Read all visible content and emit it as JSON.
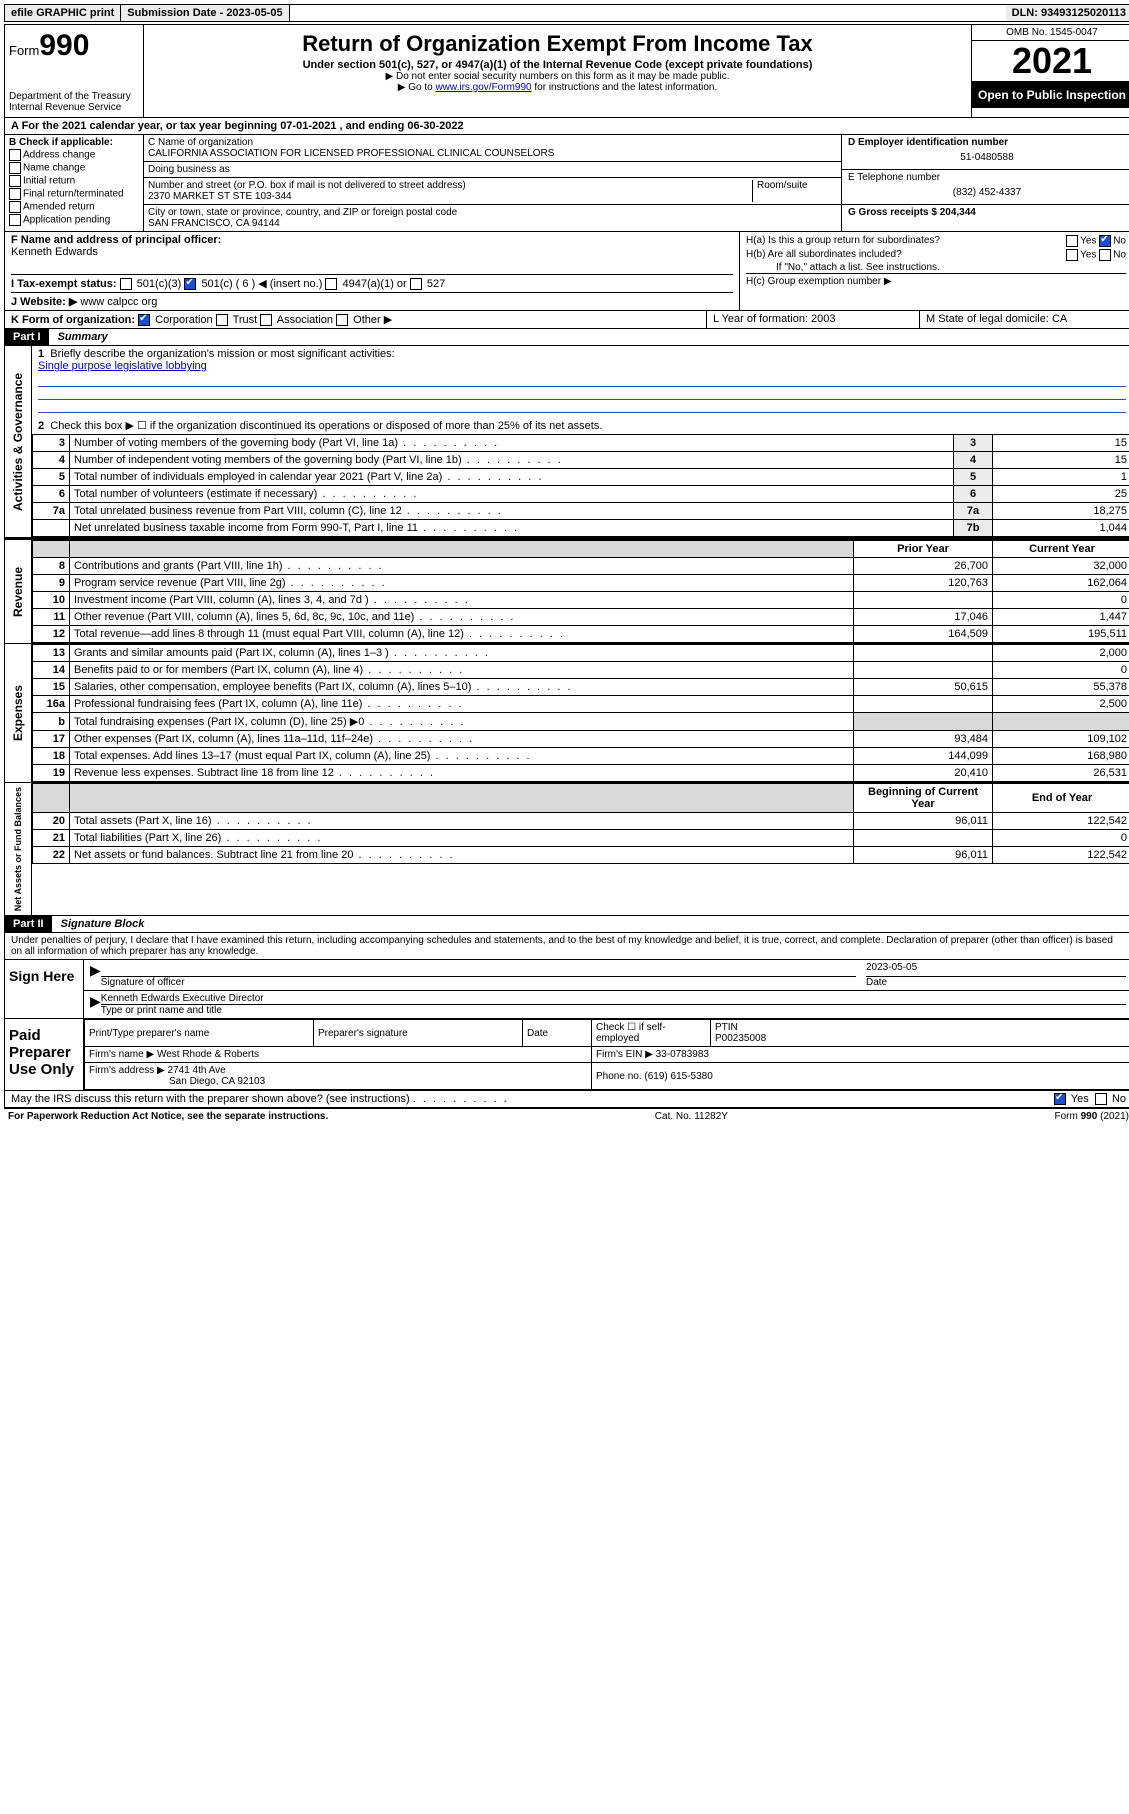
{
  "topbar": {
    "efile": "efile GRAPHIC print",
    "submission_label": "Submission Date - 2023-05-05",
    "dln": "DLN: 93493125020113"
  },
  "header": {
    "form_word": "Form",
    "form_num": "990",
    "dept": "Department of the Treasury",
    "irs": "Internal Revenue Service",
    "title": "Return of Organization Exempt From Income Tax",
    "sub": "Under section 501(c), 527, or 4947(a)(1) of the Internal Revenue Code (except private foundations)",
    "note1": "▶ Do not enter social security numbers on this form as it may be made public.",
    "note2_pre": "▶ Go to ",
    "note2_link": "www.irs.gov/Form990",
    "note2_post": " for instructions and the latest information.",
    "omb": "OMB No. 1545-0047",
    "year": "2021",
    "open": "Open to Public Inspection"
  },
  "row_a": "A For the 2021 calendar year, or tax year beginning 07-01-2021  , and ending 06-30-2022",
  "col_b": {
    "title": "B Check if applicable:",
    "items": [
      "Address change",
      "Name change",
      "Initial return",
      "Final return/terminated",
      "Amended return",
      "Application pending"
    ]
  },
  "col_c": {
    "name_label": "C Name of organization",
    "name": "CALIFORNIA ASSOCIATION FOR LICENSED PROFESSIONAL CLINICAL COUNSELORS",
    "dba_label": "Doing business as",
    "addr_label": "Number and street (or P.O. box if mail is not delivered to street address)",
    "room_label": "Room/suite",
    "addr": "2370 MARKET ST STE 103-344",
    "city_label": "City or town, state or province, country, and ZIP or foreign postal code",
    "city": "SAN FRANCISCO, CA  94144"
  },
  "col_d": {
    "ein_label": "D Employer identification number",
    "ein": "51-0480588",
    "tel_label": "E Telephone number",
    "tel": "(832) 452-4337",
    "gross_label": "G Gross receipts $ 204,344"
  },
  "row_f": {
    "label": "F  Name and address of principal officer:",
    "name": "Kenneth Edwards"
  },
  "section_h": {
    "ha": "H(a)  Is this a group return for subordinates?",
    "hb": "H(b)  Are all subordinates included?",
    "hb_note": "If \"No,\" attach a list. See instructions.",
    "hc": "H(c)  Group exemption number ▶",
    "yes": "Yes",
    "no": "No"
  },
  "row_i": {
    "label": "I   Tax-exempt status:",
    "o1": "501(c)(3)",
    "o2": "501(c) ( 6 ) ◀ (insert no.)",
    "o3": "4947(a)(1) or",
    "o4": "527"
  },
  "row_j": {
    "label": "J   Website: ▶",
    "val": " www calpcc org"
  },
  "row_k": {
    "label": "K Form of organization:",
    "o1": "Corporation",
    "o2": "Trust",
    "o3": "Association",
    "o4": "Other ▶",
    "l": "L Year of formation: 2003",
    "m": "M State of legal domicile: CA"
  },
  "part1": {
    "hdr": "Part I",
    "title": "Summary",
    "line1": "Briefly describe the organization's mission or most significant activities:",
    "mission": "Single purpose legislative lobbying",
    "line2": "Check this box ▶ ☐  if the organization discontinued its operations or disposed of more than 25% of its net assets.",
    "vlabels": {
      "gov": "Activities & Governance",
      "rev": "Revenue",
      "exp": "Expenses",
      "net": "Net Assets or Fund Balances"
    },
    "col_hdr_prior": "Prior Year",
    "col_hdr_curr": "Current Year",
    "col_hdr_beg": "Beginning of Current Year",
    "col_hdr_end": "End of Year",
    "rows_gov": [
      {
        "n": "3",
        "d": "Number of voting members of the governing body (Part VI, line 1a)",
        "box": "3",
        "v": "15"
      },
      {
        "n": "4",
        "d": "Number of independent voting members of the governing body (Part VI, line 1b)",
        "box": "4",
        "v": "15"
      },
      {
        "n": "5",
        "d": "Total number of individuals employed in calendar year 2021 (Part V, line 2a)",
        "box": "5",
        "v": "1"
      },
      {
        "n": "6",
        "d": "Total number of volunteers (estimate if necessary)",
        "box": "6",
        "v": "25"
      },
      {
        "n": "7a",
        "d": "Total unrelated business revenue from Part VIII, column (C), line 12",
        "box": "7a",
        "v": "18,275"
      },
      {
        "n": "",
        "d": "Net unrelated business taxable income from Form 990-T, Part I, line 11",
        "box": "7b",
        "v": "1,044"
      }
    ],
    "rows_rev": [
      {
        "n": "8",
        "d": "Contributions and grants (Part VIII, line 1h)",
        "p": "26,700",
        "c": "32,000"
      },
      {
        "n": "9",
        "d": "Program service revenue (Part VIII, line 2g)",
        "p": "120,763",
        "c": "162,064"
      },
      {
        "n": "10",
        "d": "Investment income (Part VIII, column (A), lines 3, 4, and 7d )",
        "p": "",
        "c": "0"
      },
      {
        "n": "11",
        "d": "Other revenue (Part VIII, column (A), lines 5, 6d, 8c, 9c, 10c, and 11e)",
        "p": "17,046",
        "c": "1,447"
      },
      {
        "n": "12",
        "d": "Total revenue—add lines 8 through 11 (must equal Part VIII, column (A), line 12)",
        "p": "164,509",
        "c": "195,511"
      }
    ],
    "rows_exp": [
      {
        "n": "13",
        "d": "Grants and similar amounts paid (Part IX, column (A), lines 1–3 )",
        "p": "",
        "c": "2,000"
      },
      {
        "n": "14",
        "d": "Benefits paid to or for members (Part IX, column (A), line 4)",
        "p": "",
        "c": "0"
      },
      {
        "n": "15",
        "d": "Salaries, other compensation, employee benefits (Part IX, column (A), lines 5–10)",
        "p": "50,615",
        "c": "55,378"
      },
      {
        "n": "16a",
        "d": "Professional fundraising fees (Part IX, column (A), line 11e)",
        "p": "",
        "c": "2,500"
      },
      {
        "n": "b",
        "d": "Total fundraising expenses (Part IX, column (D), line 25) ▶0",
        "p": "shade",
        "c": "shade"
      },
      {
        "n": "17",
        "d": "Other expenses (Part IX, column (A), lines 11a–11d, 11f–24e)",
        "p": "93,484",
        "c": "109,102"
      },
      {
        "n": "18",
        "d": "Total expenses. Add lines 13–17 (must equal Part IX, column (A), line 25)",
        "p": "144,099",
        "c": "168,980"
      },
      {
        "n": "19",
        "d": "Revenue less expenses. Subtract line 18 from line 12",
        "p": "20,410",
        "c": "26,531"
      }
    ],
    "rows_net": [
      {
        "n": "20",
        "d": "Total assets (Part X, line 16)",
        "p": "96,011",
        "c": "122,542"
      },
      {
        "n": "21",
        "d": "Total liabilities (Part X, line 26)",
        "p": "",
        "c": "0"
      },
      {
        "n": "22",
        "d": "Net assets or fund balances. Subtract line 21 from line 20",
        "p": "96,011",
        "c": "122,542"
      }
    ]
  },
  "part2": {
    "hdr": "Part II",
    "title": "Signature Block",
    "decl": "Under penalties of perjury, I declare that I have examined this return, including accompanying schedules and statements, and to the best of my knowledge and belief, it is true, correct, and complete. Declaration of preparer (other than officer) is based on all information of which preparer has any knowledge.",
    "sign_here": "Sign Here",
    "sig_officer": "Signature of officer",
    "date_label": "Date",
    "date": "2023-05-05",
    "officer_name": "Kenneth Edwards  Executive Director",
    "type_name": "Type or print name and title",
    "paid": "Paid Preparer Use Only",
    "prep_name_label": "Print/Type preparer's name",
    "prep_sig_label": "Preparer's signature",
    "check_if": "Check ☐ if self-employed",
    "ptin_label": "PTIN",
    "ptin": "P00235008",
    "firm_name_label": "Firm's name    ▶",
    "firm_name": "West Rhode & Roberts",
    "firm_ein_label": "Firm's EIN ▶",
    "firm_ein": "33-0783983",
    "firm_addr_label": "Firm's address ▶",
    "firm_addr1": "2741 4th Ave",
    "firm_addr2": "San Diego, CA  92103",
    "phone_label": "Phone no.",
    "phone": "(619) 615-5380",
    "may_irs": "May the IRS discuss this return with the preparer shown above? (see instructions)"
  },
  "footer": {
    "left": "For Paperwork Reduction Act Notice, see the separate instructions.",
    "mid": "Cat. No. 11282Y",
    "right": "Form 990 (2021)"
  }
}
